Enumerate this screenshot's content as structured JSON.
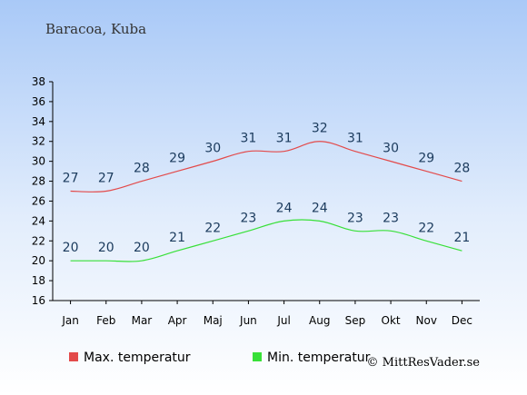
{
  "chart_data": {
    "type": "line",
    "title": "Baracoa, Kuba",
    "categories": [
      "Jan",
      "Feb",
      "Mar",
      "Apr",
      "Maj",
      "Jun",
      "Jul",
      "Aug",
      "Sep",
      "Okt",
      "Nov",
      "Dec"
    ],
    "series": [
      {
        "name": "Max. temperatur",
        "color": "#e34a4a",
        "values": [
          27,
          27,
          28,
          29,
          30,
          31,
          31,
          32,
          31,
          30,
          29,
          28
        ]
      },
      {
        "name": "Min. temperatur",
        "color": "#38e038",
        "values": [
          20,
          20,
          20,
          21,
          22,
          23,
          24,
          24,
          23,
          23,
          22,
          21
        ]
      }
    ],
    "ylim": [
      16,
      38
    ],
    "yticks": [
      16,
      18,
      20,
      22,
      24,
      26,
      28,
      30,
      32,
      34,
      36,
      38
    ],
    "grid": false,
    "legend_position": "bottom-left"
  },
  "credit": "© MittResVader.se"
}
